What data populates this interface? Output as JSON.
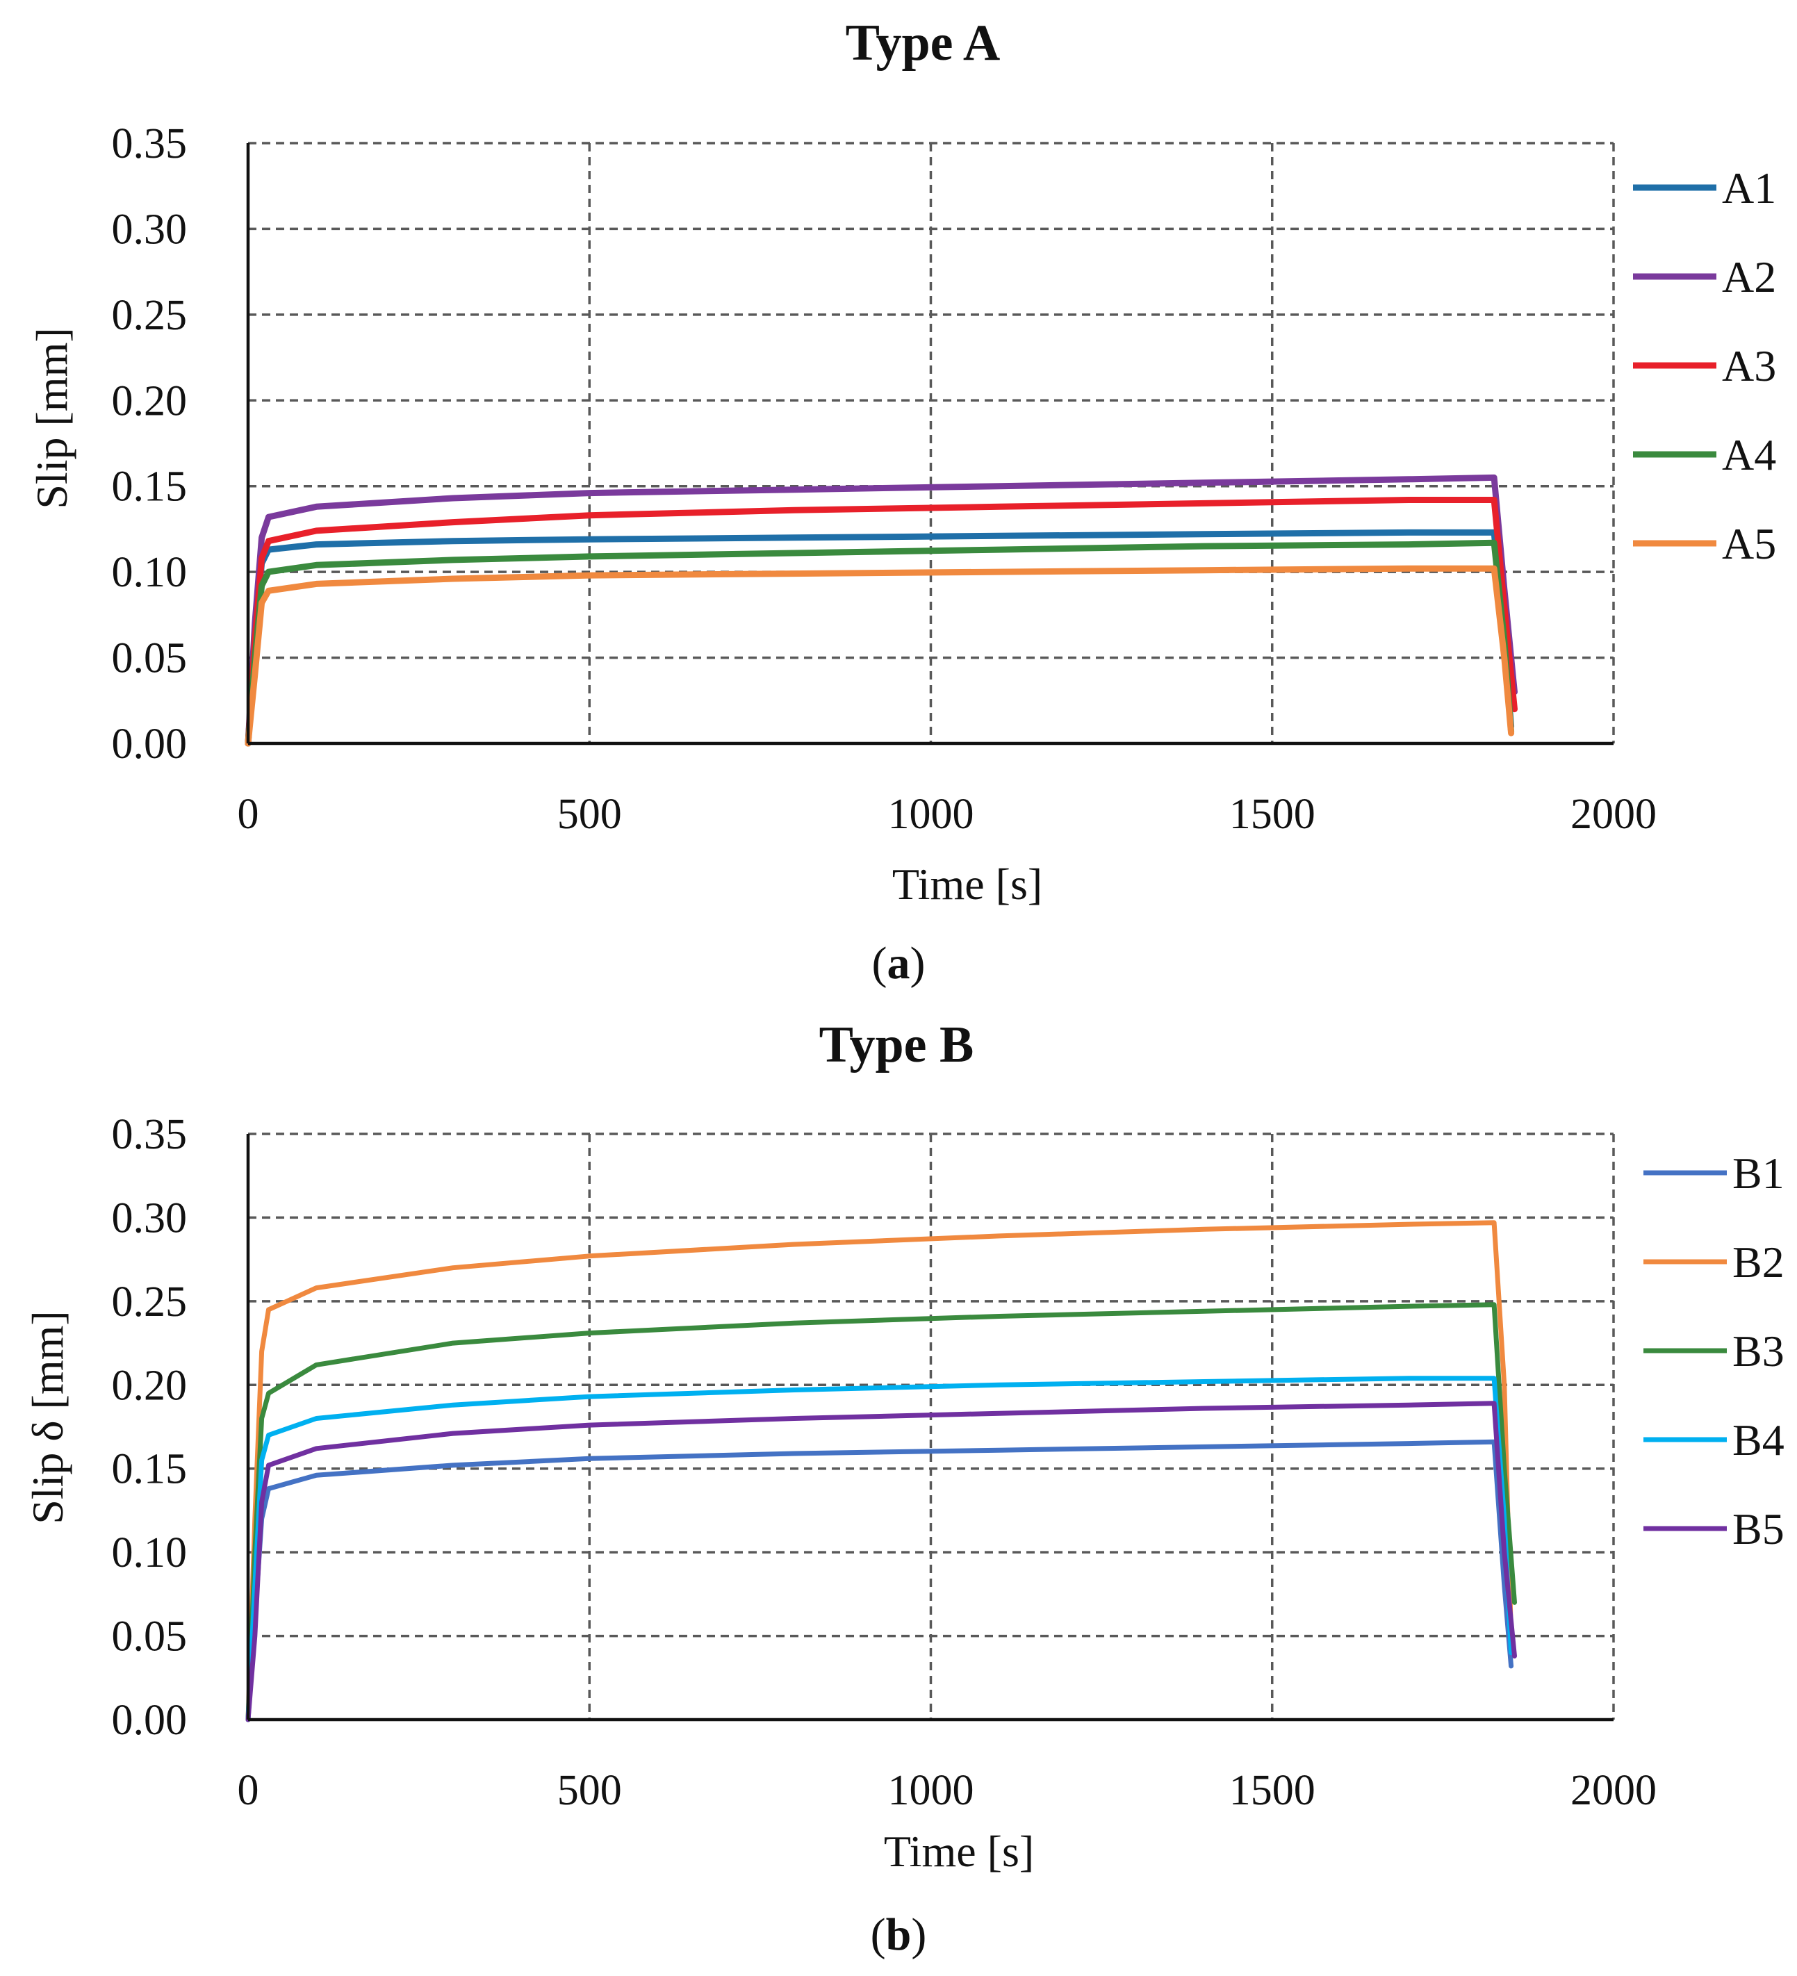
{
  "chart_data": [
    {
      "type": "line",
      "title": "Type A",
      "xlabel": "Time [s]",
      "ylabel": "Slip [mm]",
      "xlim": [
        0,
        2000
      ],
      "ylim": [
        0,
        0.35
      ],
      "xticks": [
        "0",
        "500",
        "1000",
        "1500",
        "2000"
      ],
      "yticks": [
        "0.00",
        "0.05",
        "0.10",
        "0.15",
        "0.20",
        "0.25",
        "0.30",
        "0.35"
      ],
      "grid": true,
      "legend_position": "right",
      "caption_paren_open": "(",
      "caption_letter": "a",
      "caption_paren_close": ")",
      "series": [
        {
          "name": "A1",
          "color": "#1f6fa8",
          "x": [
            0,
            10,
            20,
            30,
            100,
            300,
            500,
            800,
            1100,
            1400,
            1700,
            1825,
            1840,
            1850
          ],
          "y": [
            0,
            0.06,
            0.105,
            0.113,
            0.116,
            0.118,
            0.119,
            0.12,
            0.121,
            0.122,
            0.123,
            0.123,
            0.06,
            0.01
          ]
        },
        {
          "name": "A2",
          "color": "#7a3a9c",
          "x": [
            0,
            10,
            20,
            30,
            100,
            300,
            500,
            800,
            1100,
            1400,
            1700,
            1825,
            1840,
            1855
          ],
          "y": [
            0,
            0.07,
            0.12,
            0.132,
            0.138,
            0.143,
            0.146,
            0.148,
            0.15,
            0.152,
            0.154,
            0.155,
            0.09,
            0.03
          ]
        },
        {
          "name": "A3",
          "color": "#e8202a",
          "x": [
            0,
            10,
            20,
            30,
            100,
            300,
            500,
            800,
            1100,
            1400,
            1700,
            1825,
            1840,
            1855
          ],
          "y": [
            0,
            0.06,
            0.108,
            0.118,
            0.124,
            0.129,
            0.133,
            0.136,
            0.138,
            0.14,
            0.142,
            0.142,
            0.08,
            0.02
          ]
        },
        {
          "name": "A4",
          "color": "#3a8a3e",
          "x": [
            0,
            10,
            20,
            30,
            100,
            300,
            500,
            800,
            1100,
            1400,
            1700,
            1825,
            1840,
            1850
          ],
          "y": [
            0,
            0.05,
            0.092,
            0.1,
            0.104,
            0.107,
            0.109,
            0.111,
            0.113,
            0.115,
            0.116,
            0.117,
            0.06,
            0.007
          ]
        },
        {
          "name": "A5",
          "color": "#f0893f",
          "x": [
            0,
            10,
            20,
            30,
            100,
            300,
            500,
            800,
            1100,
            1400,
            1700,
            1825,
            1840,
            1850
          ],
          "y": [
            0,
            0.04,
            0.082,
            0.089,
            0.093,
            0.096,
            0.098,
            0.099,
            0.1,
            0.101,
            0.102,
            0.102,
            0.05,
            0.006
          ]
        }
      ]
    },
    {
      "type": "line",
      "title": "Type B",
      "xlabel": "Time [s]",
      "ylabel": "Slip δ [mm]",
      "xlim": [
        0,
        2000
      ],
      "ylim": [
        0,
        0.35
      ],
      "xticks": [
        "0",
        "500",
        "1000",
        "1500",
        "2000"
      ],
      "yticks": [
        "0.00",
        "0.05",
        "0.10",
        "0.15",
        "0.20",
        "0.25",
        "0.30",
        "0.35"
      ],
      "grid": true,
      "legend_position": "right",
      "caption_paren_open": "(",
      "caption_letter": "b",
      "caption_paren_close": ")",
      "series": [
        {
          "name": "B1",
          "color": "#4472c4",
          "x": [
            0,
            10,
            20,
            30,
            100,
            300,
            500,
            800,
            1100,
            1400,
            1700,
            1825,
            1840,
            1850
          ],
          "y": [
            0,
            0.06,
            0.12,
            0.138,
            0.146,
            0.152,
            0.156,
            0.159,
            0.161,
            0.163,
            0.165,
            0.166,
            0.08,
            0.032
          ]
        },
        {
          "name": "B2",
          "color": "#f0893f",
          "x": [
            0,
            10,
            20,
            30,
            100,
            300,
            500,
            800,
            1100,
            1400,
            1700,
            1825,
            1840,
            1850
          ],
          "y": [
            0,
            0.12,
            0.22,
            0.245,
            0.258,
            0.27,
            0.277,
            0.284,
            0.289,
            0.293,
            0.296,
            0.297,
            0.2,
            0.05
          ]
        },
        {
          "name": "B3",
          "color": "#3a8a3e",
          "x": [
            0,
            10,
            20,
            30,
            100,
            300,
            500,
            800,
            1100,
            1400,
            1700,
            1825,
            1840,
            1855
          ],
          "y": [
            0,
            0.1,
            0.18,
            0.195,
            0.212,
            0.225,
            0.231,
            0.237,
            0.241,
            0.244,
            0.247,
            0.248,
            0.15,
            0.07
          ]
        },
        {
          "name": "B4",
          "color": "#00b0f0",
          "x": [
            0,
            10,
            20,
            30,
            100,
            300,
            500,
            800,
            1100,
            1400,
            1700,
            1825,
            1840,
            1850
          ],
          "y": [
            0,
            0.08,
            0.155,
            0.17,
            0.18,
            0.188,
            0.193,
            0.197,
            0.2,
            0.202,
            0.204,
            0.204,
            0.12,
            0.04
          ]
        },
        {
          "name": "B5",
          "color": "#7030a0",
          "x": [
            0,
            10,
            20,
            30,
            100,
            300,
            500,
            800,
            1100,
            1400,
            1700,
            1825,
            1840,
            1855
          ],
          "y": [
            0,
            0.05,
            0.13,
            0.152,
            0.162,
            0.171,
            0.176,
            0.18,
            0.183,
            0.186,
            0.188,
            0.189,
            0.1,
            0.038
          ]
        }
      ]
    }
  ]
}
